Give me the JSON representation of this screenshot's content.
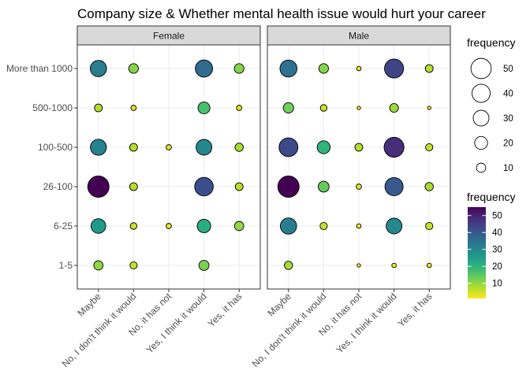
{
  "chart_data": {
    "type": "scatter",
    "title": "Company size & Whether mental health issue would hurt your career",
    "xlabel": "",
    "ylabel": "",
    "facets": [
      "Female",
      "Male"
    ],
    "x_categories": [
      "Maybe",
      "No, I don't think it would",
      "No, it has not",
      "Yes, I think it would",
      "Yes, it has"
    ],
    "y_categories": [
      "1-5",
      "6-25",
      "26-100",
      "100-500",
      "500-1000",
      "More than 1000"
    ],
    "points": [
      {
        "facet": "Female",
        "x": "Maybe",
        "y": "More than 1000",
        "frequency": 32
      },
      {
        "facet": "Female",
        "x": "No, I don't think it would",
        "y": "More than 1000",
        "frequency": 11
      },
      {
        "facet": "Female",
        "x": "Yes, I think it would",
        "y": "More than 1000",
        "frequency": 36
      },
      {
        "facet": "Female",
        "x": "Yes, it has",
        "y": "More than 1000",
        "frequency": 11
      },
      {
        "facet": "Female",
        "x": "Maybe",
        "y": "500-1000",
        "frequency": 7
      },
      {
        "facet": "Female",
        "x": "No, I don't think it would",
        "y": "500-1000",
        "frequency": 3
      },
      {
        "facet": "Female",
        "x": "Yes, I think it would",
        "y": "500-1000",
        "frequency": 17
      },
      {
        "facet": "Female",
        "x": "Yes, it has",
        "y": "500-1000",
        "frequency": 3
      },
      {
        "facet": "Female",
        "x": "Maybe",
        "y": "100-500",
        "frequency": 31
      },
      {
        "facet": "Female",
        "x": "No, I don't think it would",
        "y": "100-500",
        "frequency": 7
      },
      {
        "facet": "Female",
        "x": "No, it has not",
        "y": "100-500",
        "frequency": 3
      },
      {
        "facet": "Female",
        "x": "Yes, I think it would",
        "y": "100-500",
        "frequency": 30
      },
      {
        "facet": "Female",
        "x": "Yes, it has",
        "y": "100-500",
        "frequency": 8
      },
      {
        "facet": "Female",
        "x": "Maybe",
        "y": "26-100",
        "frequency": 55
      },
      {
        "facet": "Female",
        "x": "No, I don't think it would",
        "y": "26-100",
        "frequency": 7
      },
      {
        "facet": "Female",
        "x": "Yes, I think it would",
        "y": "26-100",
        "frequency": 42
      },
      {
        "facet": "Female",
        "x": "Yes, it has",
        "y": "26-100",
        "frequency": 7
      },
      {
        "facet": "Female",
        "x": "Maybe",
        "y": "6-25",
        "frequency": 26
      },
      {
        "facet": "Female",
        "x": "No, I don't think it would",
        "y": "6-25",
        "frequency": 5
      },
      {
        "facet": "Female",
        "x": "No, it has not",
        "y": "6-25",
        "frequency": 3
      },
      {
        "facet": "Female",
        "x": "Yes, I think it would",
        "y": "6-25",
        "frequency": 22
      },
      {
        "facet": "Female",
        "x": "Yes, it has",
        "y": "6-25",
        "frequency": 10
      },
      {
        "facet": "Female",
        "x": "Maybe",
        "y": "1-5",
        "frequency": 10
      },
      {
        "facet": "Female",
        "x": "No, I don't think it would",
        "y": "1-5",
        "frequency": 6
      },
      {
        "facet": "Female",
        "x": "Yes, I think it would",
        "y": "1-5",
        "frequency": 12
      },
      {
        "facet": "Male",
        "x": "Maybe",
        "y": "More than 1000",
        "frequency": 35
      },
      {
        "facet": "Male",
        "x": "No, I don't think it would",
        "y": "More than 1000",
        "frequency": 11
      },
      {
        "facet": "Male",
        "x": "No, it has not",
        "y": "More than 1000",
        "frequency": 2
      },
      {
        "facet": "Male",
        "x": "Yes, I think it would",
        "y": "More than 1000",
        "frequency": 44
      },
      {
        "facet": "Male",
        "x": "Yes, it has",
        "y": "More than 1000",
        "frequency": 7
      },
      {
        "facet": "Male",
        "x": "Maybe",
        "y": "500-1000",
        "frequency": 13
      },
      {
        "facet": "Male",
        "x": "No, I don't think it would",
        "y": "500-1000",
        "frequency": 5
      },
      {
        "facet": "Male",
        "x": "No, it has not",
        "y": "500-1000",
        "frequency": 1
      },
      {
        "facet": "Male",
        "x": "Yes, I think it would",
        "y": "500-1000",
        "frequency": 9
      },
      {
        "facet": "Male",
        "x": "Yes, it has",
        "y": "500-1000",
        "frequency": 1
      },
      {
        "facet": "Male",
        "x": "Maybe",
        "y": "100-500",
        "frequency": 43
      },
      {
        "facet": "Male",
        "x": "No, I don't think it would",
        "y": "100-500",
        "frequency": 20
      },
      {
        "facet": "Male",
        "x": "No, it has not",
        "y": "100-500",
        "frequency": 7
      },
      {
        "facet": "Male",
        "x": "Yes, I think it would",
        "y": "100-500",
        "frequency": 48
      },
      {
        "facet": "Male",
        "x": "Yes, it has",
        "y": "100-500",
        "frequency": 6
      },
      {
        "facet": "Male",
        "x": "Maybe",
        "y": "26-100",
        "frequency": 55
      },
      {
        "facet": "Male",
        "x": "No, I don't think it would",
        "y": "26-100",
        "frequency": 14
      },
      {
        "facet": "Male",
        "x": "No, it has not",
        "y": "26-100",
        "frequency": 3
      },
      {
        "facet": "Male",
        "x": "Yes, I think it would",
        "y": "26-100",
        "frequency": 40
      },
      {
        "facet": "Male",
        "x": "Yes, it has",
        "y": "26-100",
        "frequency": 8
      },
      {
        "facet": "Male",
        "x": "Maybe",
        "y": "6-25",
        "frequency": 32
      },
      {
        "facet": "Male",
        "x": "No, I don't think it would",
        "y": "6-25",
        "frequency": 6
      },
      {
        "facet": "Male",
        "x": "No, it has not",
        "y": "6-25",
        "frequency": 2
      },
      {
        "facet": "Male",
        "x": "Yes, I think it would",
        "y": "6-25",
        "frequency": 30
      },
      {
        "facet": "Male",
        "x": "Yes, it has",
        "y": "6-25",
        "frequency": 6
      },
      {
        "facet": "Male",
        "x": "Maybe",
        "y": "1-5",
        "frequency": 8
      },
      {
        "facet": "Male",
        "x": "No, it has not",
        "y": "1-5",
        "frequency": 1
      },
      {
        "facet": "Male",
        "x": "Yes, I think it would",
        "y": "1-5",
        "frequency": 2
      },
      {
        "facet": "Male",
        "x": "Yes, it has",
        "y": "1-5",
        "frequency": 2
      }
    ],
    "size_legend": {
      "title": "frequency",
      "breaks": [
        50,
        40,
        30,
        20,
        10
      ]
    },
    "color_legend": {
      "title": "frequency",
      "breaks": [
        50,
        40,
        30,
        20,
        10
      ],
      "range": [
        1,
        55
      ],
      "palette": "viridis",
      "direction": "reversed"
    },
    "size_range_freq": [
      1,
      55
    ],
    "grid": true,
    "legend_position": "right",
    "strip_fill": "#d9d9d9",
    "point_stroke": "#000000"
  }
}
